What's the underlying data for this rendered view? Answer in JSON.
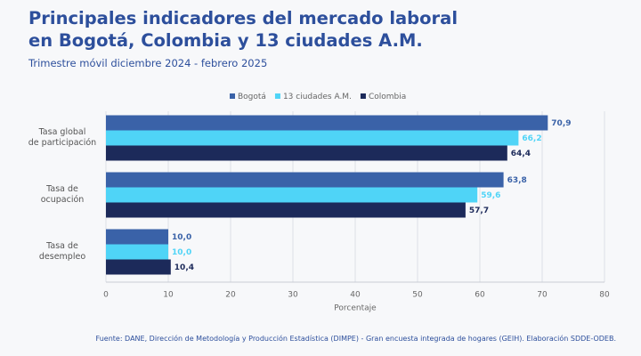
{
  "chart_data": {
    "type": "hbar",
    "title": "Principales indicadores del mercado laboral en Bogotá, Colombia y 13 ciudades A.M.",
    "subtitle": "Trimestre móvil diciembre 2024 - febrero 2025",
    "categories": [
      "Tasa global de participación",
      "Tasa de ocupación",
      "Tasa de desempleo"
    ],
    "series": [
      {
        "name": "Bogotá",
        "color": "#3a62a8",
        "values": [
          70.9,
          63.8,
          10.0
        ],
        "value_labels": [
          "70,9",
          "63,8",
          "10,0"
        ]
      },
      {
        "name": "13 ciudades A.M.",
        "color": "#4fd4f7",
        "values": [
          66.2,
          59.6,
          10.0
        ],
        "value_labels": [
          "66,2",
          "59,6",
          "10,0"
        ]
      },
      {
        "name": "Colombia",
        "color": "#1c2a5a",
        "values": [
          64.4,
          57.7,
          10.4
        ],
        "value_labels": [
          "64,4",
          "57,7",
          "10,4"
        ]
      }
    ],
    "xlim": [
      0,
      80
    ],
    "xticks": [
      0,
      10,
      20,
      30,
      40,
      50,
      60,
      70,
      80
    ],
    "xlabel": "Porcentaje",
    "grid": true,
    "source": "Fuente: DANE, Dirección de Metodología y Producción Estadística (DIMPE) - Gran encuesta integrada de hogares (GEIH). Elaboración SDDE-ODEB."
  }
}
